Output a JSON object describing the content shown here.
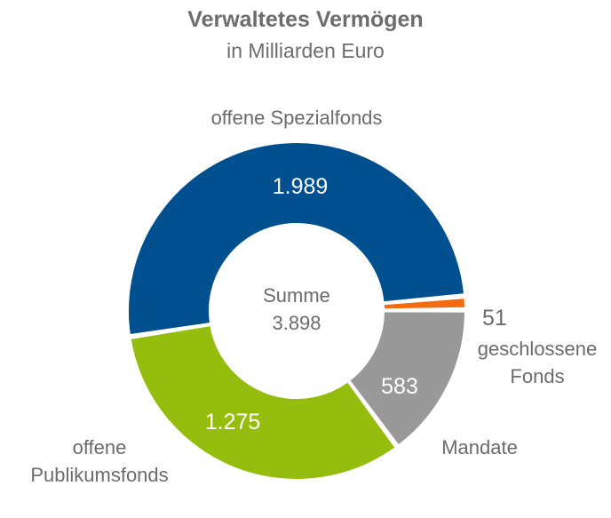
{
  "title": "Verwaltetes Vermögen",
  "subtitle": "in Milliarden Euro",
  "center": {
    "line1": "Summe",
    "line2": "3.898"
  },
  "colors": {
    "spezialfonds": "#00508f",
    "publikumsfonds": "#95bd0e",
    "mandate": "#999999",
    "geschlossene": "#f26b0f",
    "text": "#6b6b6b",
    "value_on_slice": "#ffffff"
  },
  "chart_data": {
    "type": "pie",
    "title": "Verwaltetes Vermögen",
    "subtitle": "in Milliarden Euro",
    "donut": true,
    "total_label": "Summe",
    "total_value": "3.898",
    "total": 3898,
    "slices": [
      {
        "key": "spezialfonds",
        "label_lines": [
          "offene Spezialfonds"
        ],
        "value": 1989,
        "value_label": "1.989",
        "color": "#00508f",
        "value_on_slice": true
      },
      {
        "key": "geschlossene",
        "label_lines": [
          "geschlossene",
          "Fonds"
        ],
        "value": 51,
        "value_label": "51",
        "color": "#f26b0f",
        "value_on_slice": false
      },
      {
        "key": "mandate",
        "label_lines": [
          "Mandate"
        ],
        "value": 583,
        "value_label": "583",
        "color": "#999999",
        "value_on_slice": true
      },
      {
        "key": "publikumsfonds",
        "label_lines": [
          "offene",
          "Publikumsfonds"
        ],
        "value": 1275,
        "value_label": "1.275",
        "color": "#95bd0e",
        "value_on_slice": true
      }
    ]
  }
}
